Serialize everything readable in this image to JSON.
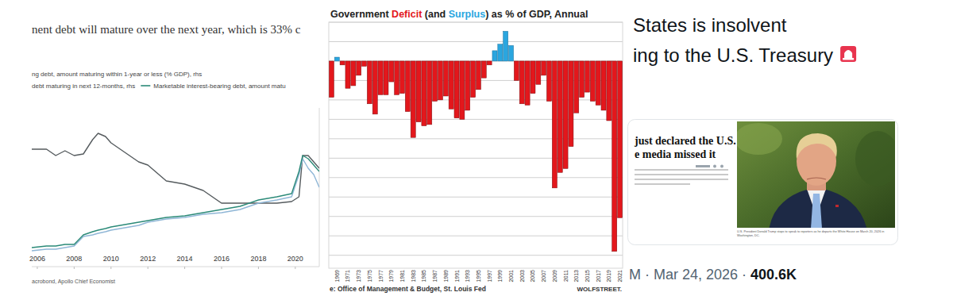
{
  "chart_data": [
    {
      "type": "line",
      "title": "nent debt will mature over the next year, which is 33% c",
      "source": "acrobond, Apollo Chief Economist",
      "x": [
        2005.7,
        2006.5,
        2007,
        2007.5,
        2008,
        2008.5,
        2009,
        2009.3,
        2009.7,
        2010,
        2010.5,
        2011,
        2011.5,
        2012,
        2013,
        2014,
        2015,
        2016,
        2017,
        2018,
        2019,
        2019.8,
        2020.2,
        2020.4,
        2020.7,
        2021,
        2021.3
      ],
      "xlim": [
        2005.7,
        2021.3
      ],
      "xticks": [
        2006,
        2008,
        2010,
        2012,
        2014,
        2016,
        2018,
        2020
      ],
      "ylim": [
        0,
        50
      ],
      "tick_labels": "x",
      "legend": "top-left",
      "series": [
        {
          "name": "ng debt, amount maturing within 1-year or less (% GDP), rhs",
          "color": "#555b5e",
          "values": [
            37,
            37,
            35,
            36.5,
            35,
            35.5,
            40,
            42,
            41,
            39,
            37,
            35,
            33,
            32,
            27,
            26,
            24,
            20,
            20,
            20,
            20,
            20.5,
            22,
            35,
            35,
            33,
            31
          ]
        },
        {
          "name": "debt maturing in next 12-months, rhs",
          "color": "#8fb6d6",
          "values": [
            5,
            5.5,
            5.5,
            6,
            6.5,
            9.5,
            10,
            10.5,
            11,
            11.5,
            12,
            12.5,
            13,
            14,
            15,
            15.5,
            16.5,
            17,
            18,
            20,
            21,
            22,
            29,
            34,
            31,
            29,
            25
          ]
        },
        {
          "name": "Marketable interest-bearing debt, amount matu",
          "color": "#2b8a78",
          "values": [
            6,
            6.5,
            6.5,
            7,
            7,
            10,
            11,
            11.5,
            12,
            12.5,
            13,
            13.5,
            14,
            14.5,
            15.5,
            16,
            17,
            18,
            19,
            21,
            22,
            23,
            30,
            35,
            34,
            32,
            30
          ]
        }
      ]
    },
    {
      "type": "bar",
      "title": "Government Deficit (and Surplus) as % of GDP, Annual",
      "source": "e: Office of Management & Budget, St. Louis Fed",
      "credit": "WOLFSTREET.",
      "categories": [
        null,
        "1969",
        null,
        "1971",
        null,
        "1973",
        null,
        "1975",
        null,
        "1977",
        null,
        "1979",
        null,
        "1981",
        null,
        "1983",
        null,
        "1985",
        null,
        "1987",
        null,
        "1989",
        null,
        "1991",
        null,
        "1993",
        null,
        "1995",
        null,
        "1997",
        null,
        "1999",
        null,
        "2001",
        null,
        "2003",
        null,
        "2005",
        null,
        "2007",
        null,
        "2009",
        null,
        "2011",
        null,
        "2013",
        null,
        "2015",
        null,
        "2017",
        null,
        "2019",
        null,
        "2021"
      ],
      "series": [
        {
          "name": "Deficit",
          "color": "#e3171c",
          "values": [
            -2.8,
            null,
            -0.3,
            -2.1,
            -1.9,
            -1.1,
            -0.4,
            -3.3,
            -4.1,
            -2.6,
            -2.6,
            -1.6,
            -2.6,
            -2.5,
            -3.9,
            -5.9,
            -4.7,
            -5,
            -4.9,
            -3.1,
            -3,
            -2.7,
            -3.7,
            -4.4,
            -4.5,
            -3.8,
            -2.8,
            -2.2,
            -1.3,
            -0.3,
            null,
            null,
            null,
            null,
            -1.5,
            -3.3,
            -3.4,
            -2.5,
            -1.8,
            -1.1,
            -3.1,
            -9.8,
            -8.6,
            -8.3,
            -6.6,
            -4,
            -2.8,
            -2.4,
            -3.1,
            -3.4,
            -3.8,
            -4.6,
            -14.7,
            -12.1
          ]
        },
        {
          "name": "Surplus",
          "color": "#2aa6df",
          "values": [
            null,
            0.3,
            null,
            null,
            null,
            null,
            null,
            null,
            null,
            null,
            null,
            null,
            null,
            null,
            null,
            null,
            null,
            null,
            null,
            null,
            null,
            null,
            null,
            null,
            null,
            null,
            null,
            null,
            null,
            null,
            0.8,
            1.3,
            2.3,
            1.2,
            null,
            null,
            null,
            null,
            null,
            null,
            null,
            null,
            null,
            null,
            null,
            null,
            null,
            null,
            null,
            null,
            null,
            null,
            null,
            null
          ]
        }
      ],
      "ylim": [
        -16,
        3
      ],
      "yticks": [
        3,
        1.5,
        0,
        -1.5,
        -3,
        -4.5,
        -6,
        -7.5,
        -9,
        -10.5,
        -12,
        -13.5,
        -15
      ],
      "grid": true,
      "tick_labels": "x"
    }
  ],
  "tweet": {
    "lines": [
      "States is insolvent",
      "ing to the U.S. Treasury"
    ],
    "card": {
      "headline": [
        "just declared the U.S.",
        "e media missed it"
      ],
      "caption": [
        "U.S. President Donald Trump stops to speak to reporters as he departs the White House on March 20, 2026 in",
        "Washington, DC."
      ]
    },
    "footer": {
      "meta": "M · Mar 24, 2026 · ",
      "views": "400.6K"
    }
  }
}
